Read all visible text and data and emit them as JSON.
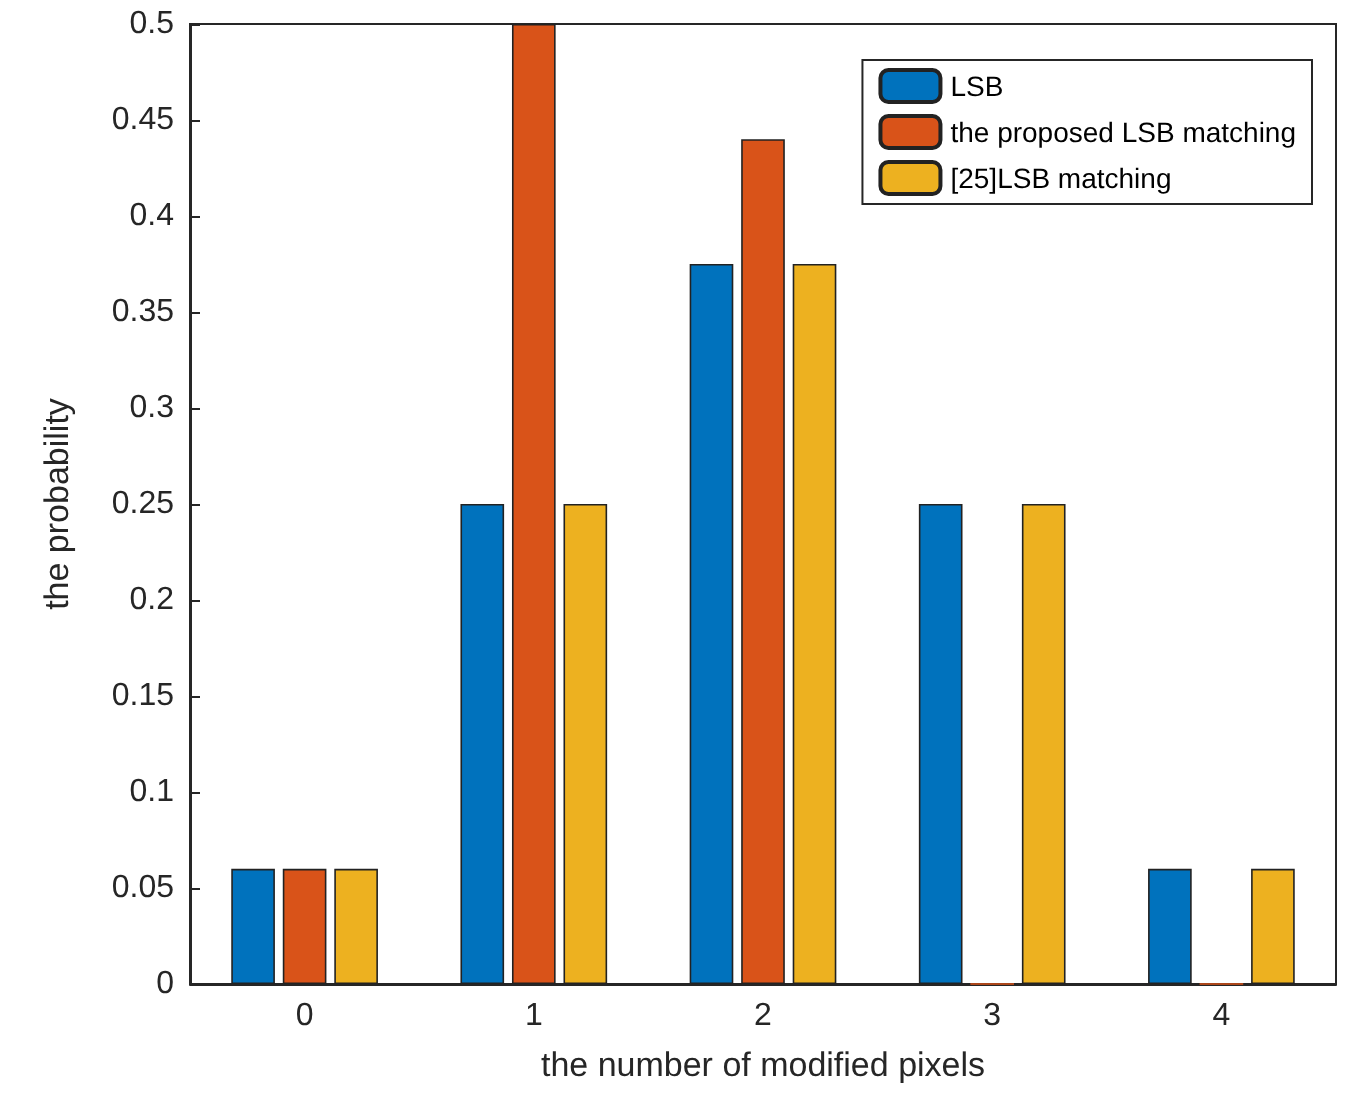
{
  "chart_data": {
    "type": "bar",
    "xlabel": "the number of modified pixels",
    "ylabel": "the probability",
    "categories": [
      "0",
      "1",
      "2",
      "3",
      "4"
    ],
    "series": [
      {
        "name": "LSB",
        "color": "#0072bd",
        "values": [
          0.06,
          0.25,
          0.375,
          0.25,
          0.06
        ]
      },
      {
        "name": "the proposed LSB matching",
        "color": "#d95319",
        "values": [
          0.06,
          0.5,
          0.44,
          0,
          0
        ]
      },
      {
        "name": "[25]LSB matching",
        "color": "#edb120",
        "values": [
          0.06,
          0.25,
          0.375,
          0.25,
          0.06
        ]
      }
    ],
    "ylim": [
      0,
      0.5
    ],
    "yticks": [
      0,
      0.05,
      0.1,
      0.15,
      0.2,
      0.25,
      0.3,
      0.35,
      0.4,
      0.45,
      0.5
    ],
    "grid": false,
    "legend": "top right"
  }
}
